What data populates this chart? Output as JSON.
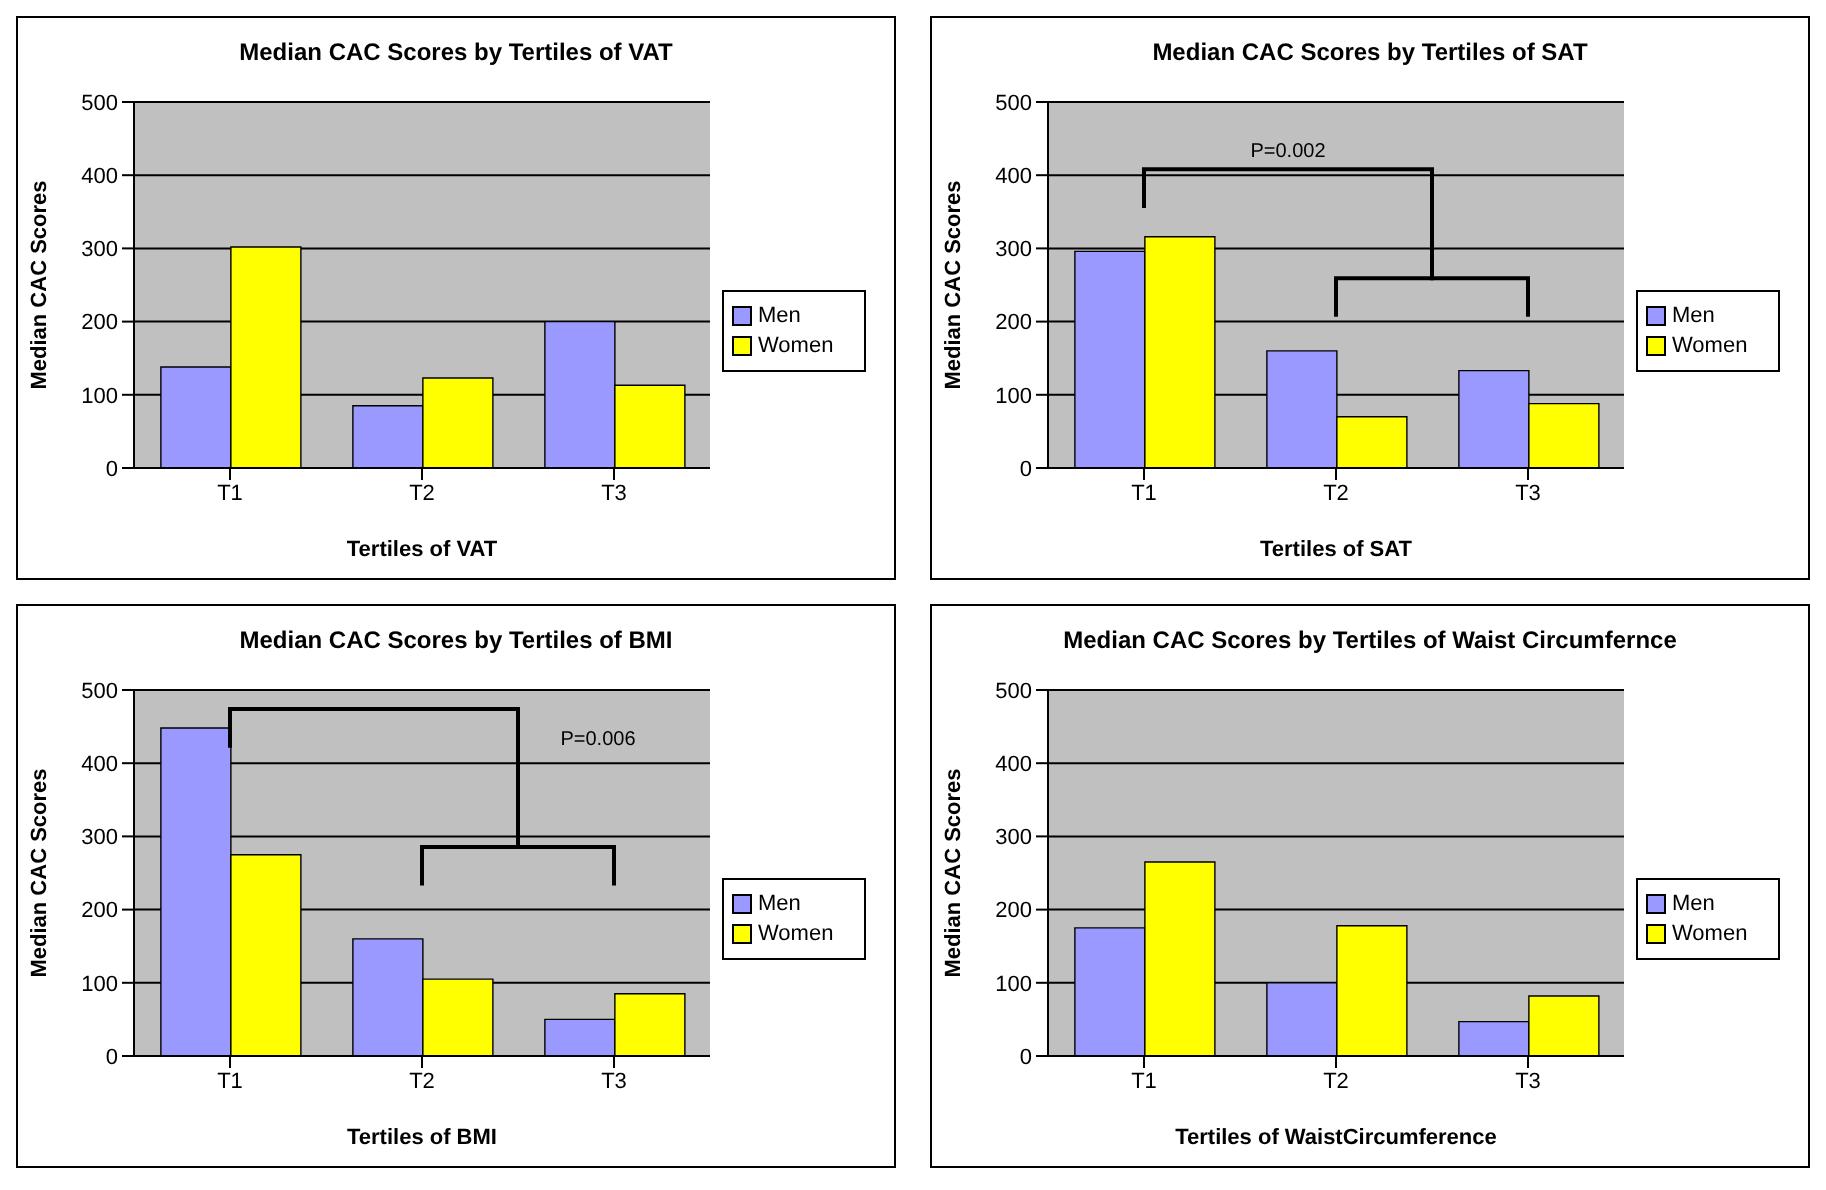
{
  "chart_data": [
    {
      "type": "bar",
      "title": "Median CAC Scores by Tertiles of VAT",
      "xlabel": "Tertiles of VAT",
      "ylabel": "Median CAC Scores",
      "categories": [
        "T1",
        "T2",
        "T3"
      ],
      "series": [
        {
          "name": "Men",
          "color": "#9999ff",
          "values": [
            138,
            85,
            200
          ]
        },
        {
          "name": "Women",
          "color": "#ffff00",
          "values": [
            302,
            123,
            113
          ]
        }
      ],
      "ylim": [
        0,
        500
      ],
      "yticks": [
        0,
        100,
        200,
        300,
        400,
        500
      ],
      "grid": "y",
      "legend": "right"
    },
    {
      "type": "bar",
      "title": "Median CAC Scores by Tertiles of SAT",
      "xlabel": "Tertiles of SAT",
      "ylabel": "Median CAC Scores",
      "categories": [
        "T1",
        "T2",
        "T3"
      ],
      "series": [
        {
          "name": "Men",
          "color": "#9999ff",
          "values": [
            296,
            160,
            133
          ]
        },
        {
          "name": "Women",
          "color": "#ffff00",
          "values": [
            316,
            70,
            88
          ]
        }
      ],
      "ylim": [
        0,
        500
      ],
      "yticks": [
        0,
        100,
        200,
        300,
        400,
        500
      ],
      "grid": "y",
      "legend": "right",
      "annotations": [
        "P=0.002"
      ]
    },
    {
      "type": "bar",
      "title": "Median CAC Scores by Tertiles of BMI",
      "xlabel": "Tertiles of BMI",
      "ylabel": "Median CAC Scores",
      "categories": [
        "T1",
        "T2",
        "T3"
      ],
      "series": [
        {
          "name": "Men",
          "color": "#9999ff",
          "values": [
            448,
            160,
            50
          ]
        },
        {
          "name": "Women",
          "color": "#ffff00",
          "values": [
            275,
            105,
            85
          ]
        }
      ],
      "ylim": [
        0,
        500
      ],
      "yticks": [
        0,
        100,
        200,
        300,
        400,
        500
      ],
      "grid": "y",
      "legend": "right",
      "annotations": [
        "P=0.006"
      ]
    },
    {
      "type": "bar",
      "title": "Median CAC Scores by Tertiles of Waist Circumfernce",
      "xlabel": "Tertiles of WaistCircumference",
      "ylabel": "Median CAC Scores",
      "categories": [
        "T1",
        "T2",
        "T3"
      ],
      "series": [
        {
          "name": "Men",
          "color": "#9999ff",
          "values": [
            175,
            100,
            47
          ]
        },
        {
          "name": "Women",
          "color": "#ffff00",
          "values": [
            265,
            178,
            82
          ]
        }
      ],
      "ylim": [
        0,
        500
      ],
      "yticks": [
        0,
        100,
        200,
        300,
        400,
        500
      ],
      "grid": "y",
      "legend": "right"
    }
  ]
}
